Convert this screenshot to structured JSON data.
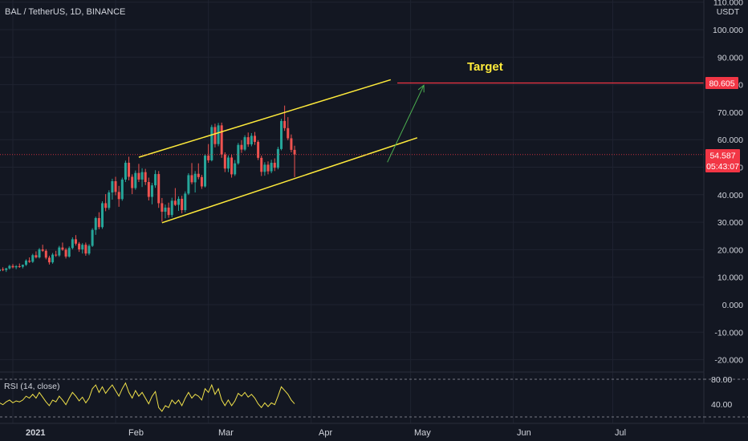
{
  "header": {
    "symbol": "BAL / TetherUS, 1D, BINANCE"
  },
  "price_axis": {
    "currency": "USDT",
    "ticks": [
      "110.000",
      "100.000",
      "90.000",
      "80.000",
      "70.000",
      "60.000",
      "50.000",
      "40.000",
      "30.000",
      "20.000",
      "10.000",
      "0.000",
      "-10.000",
      "-20.000"
    ]
  },
  "badges": {
    "target_price": "80.605",
    "current_price": "54.587",
    "countdown": "05:43:07"
  },
  "annotations": {
    "target_label": "Target"
  },
  "rsi": {
    "label": "RSI (14, close)",
    "ticks": [
      "80.00",
      "40.00"
    ]
  },
  "time_axis": {
    "labels": [
      "2021",
      "Feb",
      "Mar",
      "Apr",
      "May",
      "Jun",
      "Jul"
    ]
  },
  "colors": {
    "background": "#131722",
    "up": "#26a69a",
    "down": "#ef5350",
    "channel": "#ffeb3b",
    "arrow": "#4caf50",
    "target_line": "#f23645",
    "rsi_line": "#f0e14a"
  },
  "chart_data": {
    "type": "candlestick",
    "start_date": "2020-12-24",
    "interval": "1D",
    "y_axis": {
      "min": -25,
      "max": 112,
      "unit": "USDT"
    },
    "ohlc": [
      [
        12.8,
        13.6,
        11.5,
        11.8
      ],
      [
        11.8,
        12.6,
        10.8,
        12.1
      ],
      [
        12.1,
        12.9,
        11.4,
        11.6
      ],
      [
        11.6,
        12.4,
        10.9,
        12.2
      ],
      [
        12.2,
        13.1,
        11.6,
        12.9
      ],
      [
        12.9,
        13.6,
        12.2,
        12.6
      ],
      [
        12.6,
        13.4,
        11.9,
        13.2
      ],
      [
        13.2,
        14.5,
        12.8,
        14.1
      ],
      [
        14.1,
        14.8,
        13.2,
        13.6
      ],
      [
        13.6,
        14.4,
        12.9,
        14.0
      ],
      [
        14.0,
        15.0,
        13.4,
        13.8
      ],
      [
        13.8,
        14.6,
        13.2,
        14.5
      ],
      [
        14.5,
        16.5,
        14.1,
        16.0
      ],
      [
        16.0,
        17.2,
        15.2,
        15.6
      ],
      [
        15.6,
        18.5,
        15.2,
        18.0
      ],
      [
        18.0,
        19.4,
        16.8,
        17.2
      ],
      [
        17.2,
        20.6,
        16.8,
        20.1
      ],
      [
        20.1,
        21.8,
        19.2,
        19.6
      ],
      [
        19.6,
        20.2,
        16.5,
        17.1
      ],
      [
        17.1,
        17.8,
        14.6,
        15.4
      ],
      [
        15.4,
        18.8,
        14.9,
        18.2
      ],
      [
        18.2,
        19.6,
        17.4,
        17.9
      ],
      [
        17.9,
        21.4,
        17.4,
        20.8
      ],
      [
        20.8,
        22.6,
        19.6,
        20.0
      ],
      [
        20.0,
        20.6,
        16.8,
        17.5
      ],
      [
        17.5,
        21.2,
        17.1,
        20.6
      ],
      [
        20.6,
        24.5,
        20.1,
        23.8
      ],
      [
        23.8,
        25.3,
        21.5,
        22.2
      ],
      [
        22.2,
        22.8,
        19.2,
        20.1
      ],
      [
        20.1,
        22.4,
        18.6,
        21.8
      ],
      [
        21.8,
        22.6,
        17.8,
        18.6
      ],
      [
        18.6,
        22.0,
        18.0,
        21.4
      ],
      [
        21.4,
        27.8,
        21.0,
        27.2
      ],
      [
        27.2,
        32.0,
        25.4,
        31.5
      ],
      [
        31.5,
        33.6,
        27.4,
        28.2
      ],
      [
        28.2,
        37.6,
        27.6,
        36.9
      ],
      [
        36.9,
        40.2,
        34.0,
        35.2
      ],
      [
        35.2,
        41.6,
        34.5,
        40.8
      ],
      [
        40.8,
        45.8,
        38.2,
        44.9
      ],
      [
        44.9,
        46.5,
        39.8,
        41.0
      ],
      [
        41.0,
        43.2,
        35.6,
        38.4
      ],
      [
        38.4,
        46.2,
        37.8,
        45.5
      ],
      [
        45.5,
        52.4,
        44.6,
        51.6
      ],
      [
        51.6,
        53.8,
        45.2,
        46.5
      ],
      [
        46.5,
        47.4,
        40.2,
        42.4
      ],
      [
        42.4,
        48.8,
        41.8,
        47.9
      ],
      [
        47.9,
        51.2,
        44.6,
        45.5
      ],
      [
        45.5,
        49.6,
        42.8,
        48.2
      ],
      [
        48.2,
        49.4,
        43.5,
        44.6
      ],
      [
        44.6,
        46.2,
        37.9,
        39.2
      ],
      [
        39.2,
        44.3,
        36.5,
        43.4
      ],
      [
        43.4,
        48.9,
        42.5,
        47.5
      ],
      [
        47.5,
        48.6,
        35.2,
        36.9
      ],
      [
        36.9,
        38.8,
        30.2,
        33.8
      ],
      [
        33.8,
        36.4,
        31.4,
        35.3
      ],
      [
        35.3,
        37.1,
        31.6,
        32.6
      ],
      [
        32.6,
        38.9,
        31.8,
        37.8
      ],
      [
        37.8,
        42.4,
        35.9,
        36.3
      ],
      [
        36.3,
        39.4,
        34.1,
        38.5
      ],
      [
        38.5,
        39.6,
        33.2,
        34.4
      ],
      [
        34.4,
        41.2,
        33.6,
        40.4
      ],
      [
        40.4,
        47.8,
        39.9,
        47.1
      ],
      [
        47.1,
        51.5,
        43.8,
        44.5
      ],
      [
        44.5,
        48.6,
        40.8,
        47.6
      ],
      [
        47.6,
        51.4,
        45.6,
        46.4
      ],
      [
        46.4,
        47.2,
        42.1,
        43.0
      ],
      [
        43.0,
        54.8,
        42.6,
        54.2
      ],
      [
        54.2,
        58.4,
        51.6,
        52.5
      ],
      [
        52.5,
        65.4,
        52.1,
        64.6
      ],
      [
        64.6,
        65.8,
        57.2,
        58.4
      ],
      [
        58.4,
        66.1,
        57.6,
        65.2
      ],
      [
        65.2,
        66.2,
        53.4,
        54.6
      ],
      [
        54.6,
        55.4,
        48.2,
        49.5
      ],
      [
        49.5,
        54.3,
        48.2,
        53.5
      ],
      [
        53.5,
        54.6,
        46.2,
        47.4
      ],
      [
        47.4,
        52.6,
        46.8,
        51.4
      ],
      [
        51.4,
        58.8,
        50.9,
        58.1
      ],
      [
        58.1,
        59.8,
        55.2,
        56.4
      ],
      [
        56.4,
        61.6,
        55.9,
        60.9
      ],
      [
        60.9,
        62.6,
        57.4,
        58.3
      ],
      [
        58.3,
        62.4,
        57.6,
        61.4
      ],
      [
        61.4,
        62.8,
        58.1,
        59.2
      ],
      [
        59.2,
        59.8,
        52.6,
        53.4
      ],
      [
        53.4,
        54.2,
        46.8,
        48.3
      ],
      [
        48.3,
        51.8,
        46.9,
        50.9
      ],
      [
        50.9,
        52.1,
        47.4,
        48.5
      ],
      [
        48.5,
        52.7,
        47.8,
        51.6
      ],
      [
        51.6,
        53.2,
        48.6,
        49.8
      ],
      [
        49.8,
        57.4,
        49.2,
        56.6
      ],
      [
        56.6,
        67.6,
        56.1,
        66.8
      ],
      [
        66.8,
        72.4,
        63.2,
        64.2
      ],
      [
        64.2,
        68.2,
        59.8,
        60.5
      ],
      [
        60.5,
        61.9,
        55.4,
        56.3
      ],
      [
        56.3,
        57.8,
        46.4,
        54.6
      ]
    ],
    "target": {
      "label": "Target",
      "price": 80.605
    },
    "last_price": 54.587,
    "rsi": {
      "label": "RSI (14, close)",
      "y_range": [
        30,
        90
      ],
      "levels": [
        80,
        40
      ],
      "values": [
        52,
        54,
        50,
        53,
        55,
        53,
        56,
        58,
        55,
        57,
        56,
        58,
        62,
        60,
        64,
        60,
        66,
        61,
        56,
        52,
        58,
        56,
        62,
        58,
        53,
        60,
        66,
        62,
        57,
        61,
        55,
        60,
        70,
        74,
        66,
        72,
        65,
        70,
        74,
        68,
        62,
        70,
        76,
        66,
        60,
        68,
        62,
        66,
        60,
        54,
        62,
        67,
        50,
        46,
        52,
        50,
        58,
        54,
        58,
        52,
        60,
        66,
        60,
        64,
        62,
        58,
        70,
        66,
        74,
        64,
        70,
        58,
        52,
        58,
        52,
        57,
        65,
        62,
        66,
        61,
        64,
        60,
        54,
        50,
        55,
        51,
        55,
        53,
        62,
        72,
        68,
        64,
        58,
        54
      ]
    },
    "channel": {
      "upper": [
        [
          "2021-02-08",
          53.6
        ],
        [
          "2021-04-25",
          81.8
        ]
      ],
      "lower": [
        [
          "2021-02-15",
          29.8
        ],
        [
          "2021-05-03",
          60.7
        ]
      ]
    },
    "projection_arrow": [
      [
        "2021-04-24",
        51.8
      ],
      [
        "2021-05-05",
        79.8
      ]
    ]
  }
}
